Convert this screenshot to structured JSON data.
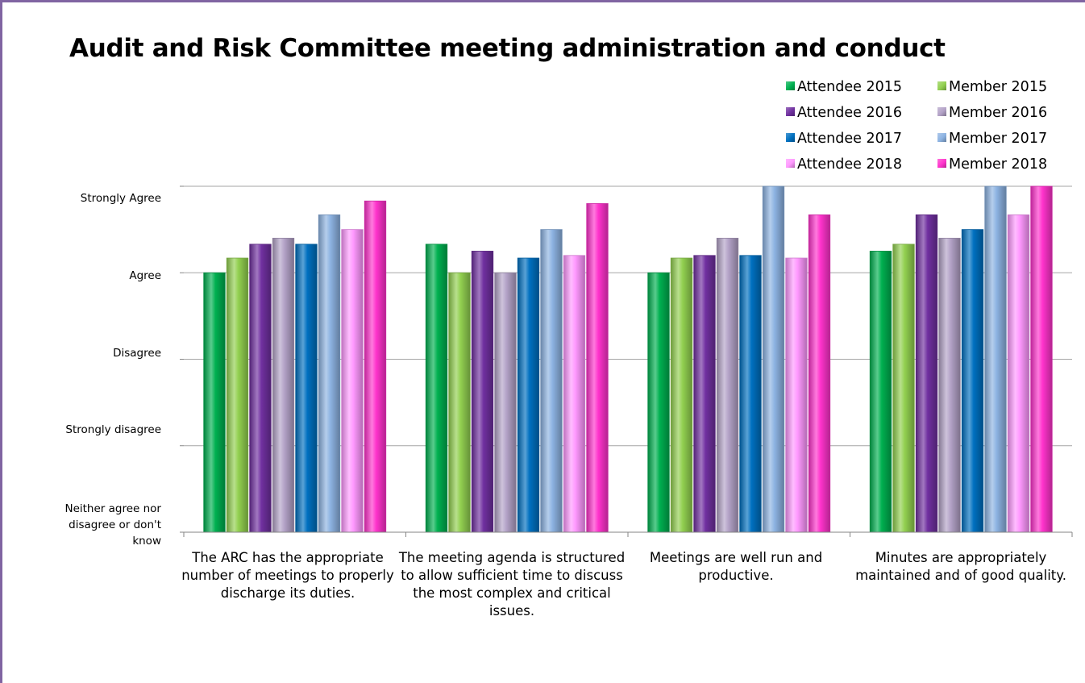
{
  "chart_data": {
    "type": "bar",
    "title": "Audit and Risk Committee meeting administration and conduct",
    "categories": [
      "The ARC has the appropriate number of meetings to properly discharge its duties.",
      "The meeting agenda is structured to allow sufficient time to discuss the most complex and critical issues.",
      "Meetings are well run and productive.",
      "Minutes are appropriately maintained and of good quality."
    ],
    "y_tick_labels": [
      {
        "value": 0,
        "label": "Neither agree nor disagree or don't know"
      },
      {
        "value": 1,
        "label": "Strongly disagree"
      },
      {
        "value": 2,
        "label": "Disagree"
      },
      {
        "value": 3,
        "label": "Agree"
      },
      {
        "value": 4,
        "label": "Strongly Agree"
      }
    ],
    "ylim": [
      0,
      4
    ],
    "grid": true,
    "legend_position": "top-right",
    "series": [
      {
        "name": "Attendee 2015",
        "color": "#00b050",
        "values": [
          3.0,
          3.33,
          3.0,
          3.25
        ]
      },
      {
        "name": "Member 2015",
        "color": "#92d050",
        "values": [
          3.17,
          3.0,
          3.17,
          3.33
        ]
      },
      {
        "name": "Attendee 2016",
        "color": "#7030a0",
        "values": [
          3.33,
          3.25,
          3.2,
          3.67
        ]
      },
      {
        "name": "Member 2016",
        "color": "#b3a2c7",
        "values": [
          3.4,
          3.0,
          3.4,
          3.4
        ]
      },
      {
        "name": "Attendee 2017",
        "color": "#0070c0",
        "values": [
          3.33,
          3.17,
          3.2,
          3.5
        ]
      },
      {
        "name": "Member 2017",
        "color": "#8db3e2",
        "values": [
          3.67,
          3.5,
          4.0,
          4.0
        ]
      },
      {
        "name": "Attendee 2018",
        "color": "#ff99ff",
        "values": [
          3.5,
          3.2,
          3.17,
          3.67
        ]
      },
      {
        "name": "Member 2018",
        "color": "#ff33cc",
        "values": [
          3.83,
          3.8,
          3.67,
          4.0
        ]
      }
    ]
  }
}
